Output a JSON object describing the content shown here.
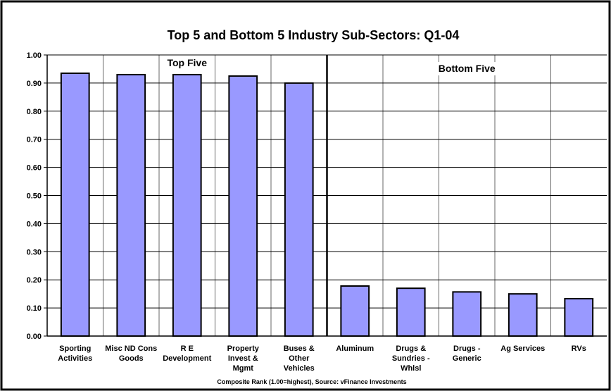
{
  "chart_data": {
    "type": "bar",
    "title": "Top 5 and Bottom 5 Industry Sub-Sectors: Q1-04",
    "categories": [
      [
        "Sporting",
        "Activities"
      ],
      [
        "Misc ND Cons",
        "Goods"
      ],
      [
        "R E",
        "Development"
      ],
      [
        "Property",
        "Invest &",
        "Mgmt"
      ],
      [
        "Buses &",
        "Other",
        "Vehicles"
      ],
      [
        "Aluminum"
      ],
      [
        "Drugs &",
        "Sundries -",
        "Whlsl"
      ],
      [
        "Drugs -",
        "Generic"
      ],
      [
        "Ag Services"
      ],
      [
        "RVs"
      ]
    ],
    "values": [
      0.935,
      0.93,
      0.93,
      0.925,
      0.9,
      0.178,
      0.17,
      0.157,
      0.15,
      0.133
    ],
    "ylim": [
      0,
      1.0
    ],
    "yticks": [
      "0.00",
      "0.10",
      "0.20",
      "0.30",
      "0.40",
      "0.50",
      "0.60",
      "0.70",
      "0.80",
      "0.90",
      "1.00"
    ],
    "xlabel": "Composite Rank (1.00=highest), Source: vFinance Investments",
    "ylabel": "",
    "grid": true,
    "group_labels": [
      "Top Five",
      "Bottom Five"
    ],
    "divider_after_index": 4,
    "bar_color": "#9999ff",
    "bar_stroke": "#000000"
  }
}
